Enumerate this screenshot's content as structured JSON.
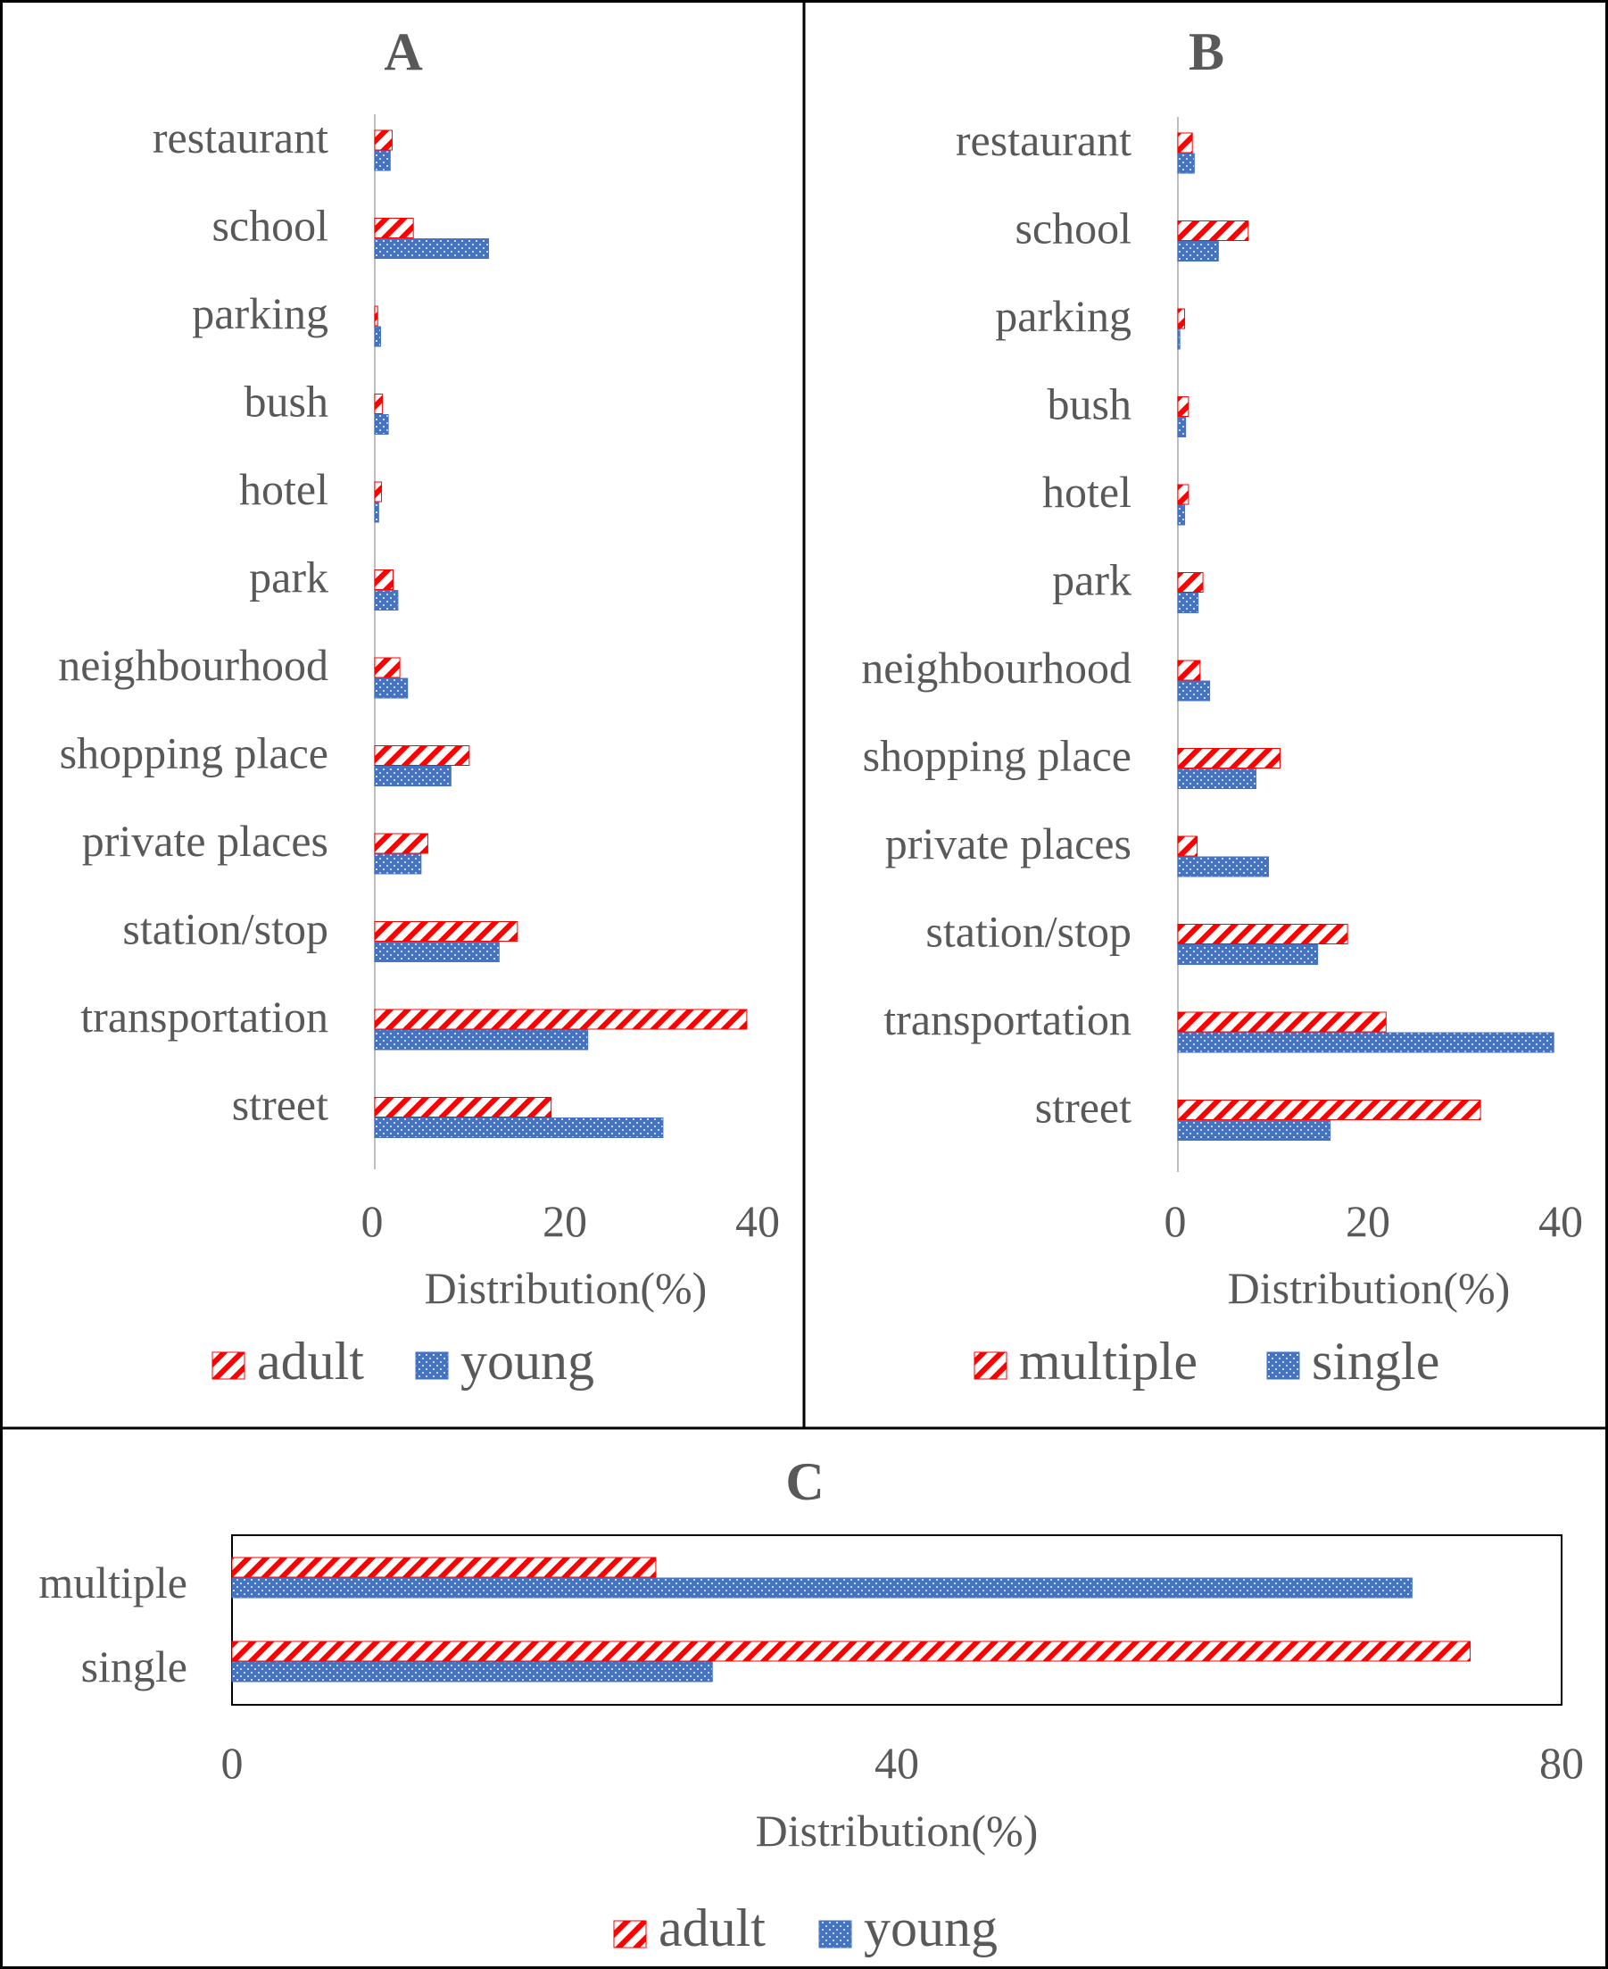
{
  "colors": {
    "red": "#ff0000",
    "blue": "#4472c4",
    "axis": "#bfbfbf",
    "text": "#595959",
    "frame": "#000000"
  },
  "chart_data": [
    {
      "panel": "A",
      "type": "bar",
      "orientation": "horizontal",
      "title": "A",
      "xlabel": "Distribution(%)",
      "ylabel": "",
      "xlim": [
        0,
        40
      ],
      "xticks": [
        "0",
        "20",
        "40"
      ],
      "categories": [
        "restaurant",
        "school",
        "parking",
        "bush",
        "hotel",
        "park",
        "neighbourhood",
        "shopping place",
        "private places",
        "station/stop",
        "transportation",
        "street"
      ],
      "series": [
        {
          "name": "adult",
          "pattern": "hatch",
          "values": [
            1.8,
            4.0,
            0.3,
            0.8,
            0.7,
            1.9,
            2.6,
            9.8,
            5.5,
            14.8,
            38.6,
            18.3
          ]
        },
        {
          "name": "young",
          "pattern": "dots",
          "values": [
            1.6,
            11.8,
            0.6,
            1.4,
            0.4,
            2.4,
            3.4,
            7.9,
            4.8,
            12.9,
            22.1,
            29.9
          ]
        }
      ],
      "legend": [
        "adult",
        "young"
      ],
      "legend_position": "bottom"
    },
    {
      "panel": "B",
      "type": "bar",
      "orientation": "horizontal",
      "title": "B",
      "xlabel": "Distribution(%)",
      "ylabel": "",
      "xlim": [
        0,
        40
      ],
      "xticks": [
        "0",
        "20",
        "40"
      ],
      "categories": [
        "restaurant",
        "school",
        "parking",
        "bush",
        "hotel",
        "park",
        "neighbourhood",
        "shopping place",
        "private places",
        "station/stop",
        "transportation",
        "street"
      ],
      "series": [
        {
          "name": "multiple",
          "pattern": "hatch",
          "values": [
            1.5,
            7.3,
            0.7,
            1.1,
            1.1,
            2.6,
            2.3,
            10.6,
            2.0,
            17.6,
            21.6,
            31.4
          ]
        },
        {
          "name": "single",
          "pattern": "dots",
          "values": [
            1.7,
            4.2,
            0.2,
            0.8,
            0.7,
            2.1,
            3.3,
            8.1,
            9.4,
            14.5,
            39.0,
            15.8
          ]
        }
      ],
      "legend": [
        "multiple",
        "single"
      ],
      "legend_position": "bottom"
    },
    {
      "panel": "C",
      "type": "bar",
      "orientation": "horizontal",
      "title": "C",
      "xlabel": "Distribution(%)",
      "ylabel": "",
      "xlim": [
        0,
        80
      ],
      "xticks": [
        "0",
        "40",
        "80"
      ],
      "categories": [
        "multiple",
        "single"
      ],
      "series": [
        {
          "name": "adult",
          "pattern": "hatch",
          "values": [
            25.5,
            74.5
          ]
        },
        {
          "name": "young",
          "pattern": "dots",
          "values": [
            71.0,
            28.9
          ]
        }
      ],
      "legend": [
        "adult",
        "young"
      ],
      "legend_position": "bottom"
    }
  ]
}
